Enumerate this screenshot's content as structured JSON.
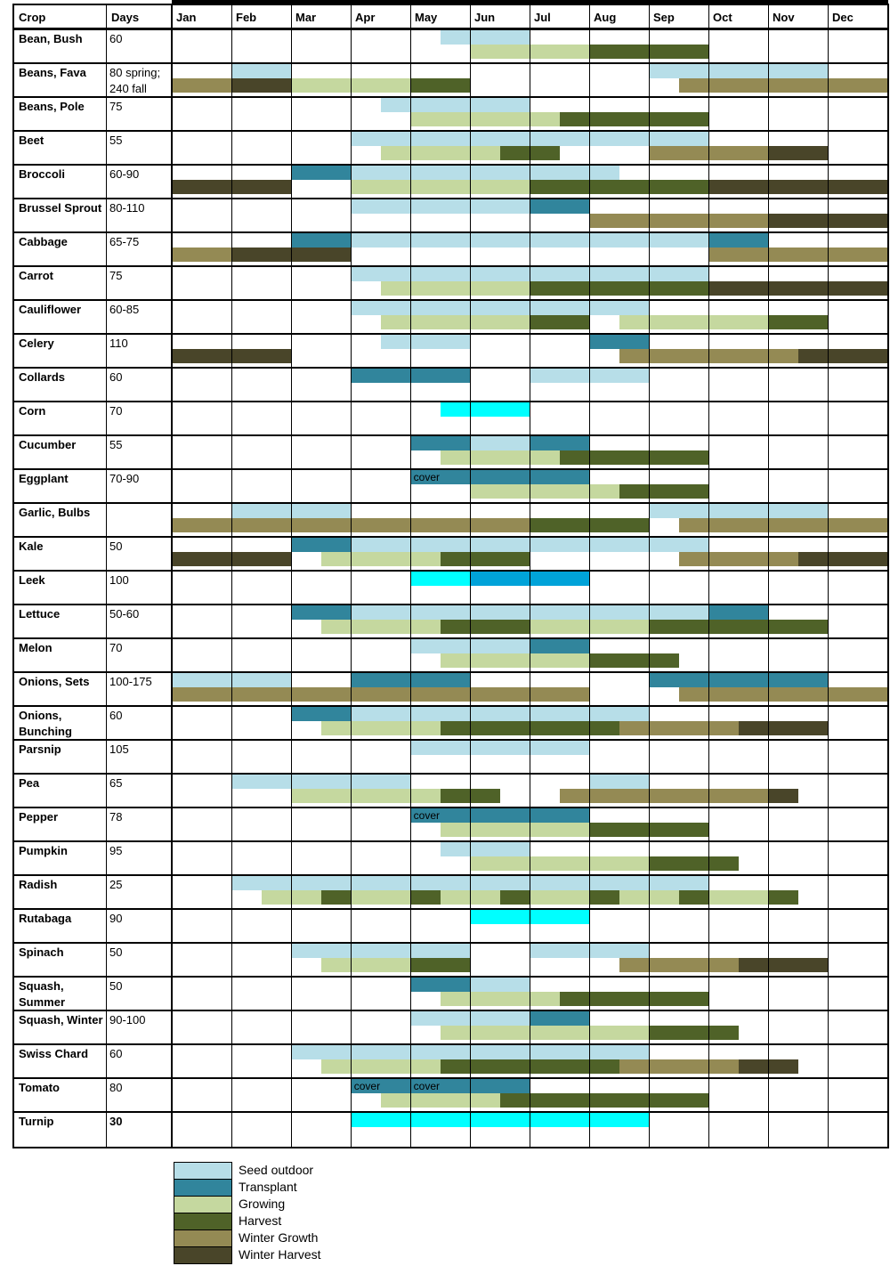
{
  "chart_data": {
    "type": "table",
    "title": "Vegetable planting calendar (gantt-style, months Jan-Dec)",
    "columns": {
      "crop": "Crop",
      "days": "Days"
    },
    "months": [
      "Jan",
      "Feb",
      "Mar",
      "Apr",
      "May",
      "Jun",
      "Jul",
      "Aug",
      "Sep",
      "Oct",
      "Nov",
      "Dec"
    ],
    "axis": {
      "months_per_row": 12,
      "bar_unit": "month index 0=Jan start, 12=Dec end"
    },
    "colors": {
      "seed": "#B7DEE8",
      "trans": "#31859C",
      "grow": "#C5D89F",
      "harv": "#4F6228",
      "wgrow": "#948A54",
      "wharv": "#494529",
      "cyan": "#00FFFF",
      "blue": "#00A3D9"
    },
    "legend": [
      {
        "key": "seed",
        "label": "Seed outdoor"
      },
      {
        "key": "trans",
        "label": "Transplant"
      },
      {
        "key": "grow",
        "label": "Growing"
      },
      {
        "key": "harv",
        "label": "Harvest"
      },
      {
        "key": "wgrow",
        "label": "Winter Growth"
      },
      {
        "key": "wharv",
        "label": "Winter Harvest"
      }
    ],
    "rows": [
      {
        "crop": "Bean, Bush",
        "days": "60",
        "top": [
          {
            "t": "seed",
            "s": 4.5,
            "e": 6
          }
        ],
        "bot": [
          {
            "t": "grow",
            "s": 5,
            "e": 7
          },
          {
            "t": "harv",
            "s": 7,
            "e": 9
          }
        ]
      },
      {
        "crop": "Beans, Fava",
        "days": "80 spring; 240 fall",
        "top": [
          {
            "t": "seed",
            "s": 1,
            "e": 2
          },
          {
            "t": "seed",
            "s": 8,
            "e": 11
          }
        ],
        "bot": [
          {
            "t": "wgrow",
            "s": 0,
            "e": 1
          },
          {
            "t": "wharv",
            "s": 1,
            "e": 2
          },
          {
            "t": "grow",
            "s": 2,
            "e": 4
          },
          {
            "t": "harv",
            "s": 4,
            "e": 5
          },
          {
            "t": "wgrow",
            "s": 8.5,
            "e": 12
          }
        ]
      },
      {
        "crop": "Beans, Pole",
        "days": "75",
        "top": [
          {
            "t": "seed",
            "s": 3.5,
            "e": 6
          }
        ],
        "bot": [
          {
            "t": "grow",
            "s": 4,
            "e": 6.5
          },
          {
            "t": "harv",
            "s": 6.5,
            "e": 9
          }
        ]
      },
      {
        "crop": "Beet",
        "days": "55",
        "top": [
          {
            "t": "seed",
            "s": 3,
            "e": 9
          }
        ],
        "bot": [
          {
            "t": "grow",
            "s": 3.5,
            "e": 5.5
          },
          {
            "t": "harv",
            "s": 5.5,
            "e": 6.5
          },
          {
            "t": "wgrow",
            "s": 8,
            "e": 10
          },
          {
            "t": "wharv",
            "s": 10,
            "e": 11
          }
        ]
      },
      {
        "crop": "Broccoli",
        "days": "60-90",
        "top": [
          {
            "t": "trans",
            "s": 2,
            "e": 3
          },
          {
            "t": "seed",
            "s": 3,
            "e": 7.5
          }
        ],
        "bot": [
          {
            "t": "wharv",
            "s": 0,
            "e": 2
          },
          {
            "t": "grow",
            "s": 3,
            "e": 6
          },
          {
            "t": "harv",
            "s": 6,
            "e": 9
          },
          {
            "t": "wharv",
            "s": 9,
            "e": 12
          }
        ]
      },
      {
        "crop": "Brussel Sprout",
        "days": "80-110",
        "top": [
          {
            "t": "seed",
            "s": 3,
            "e": 6
          },
          {
            "t": "trans",
            "s": 6,
            "e": 7
          }
        ],
        "bot": [
          {
            "t": "wgrow",
            "s": 7,
            "e": 10
          },
          {
            "t": "wharv",
            "s": 10,
            "e": 12
          }
        ]
      },
      {
        "crop": "Cabbage",
        "days": "65-75",
        "top": [
          {
            "t": "trans",
            "s": 2,
            "e": 3
          },
          {
            "t": "seed",
            "s": 3,
            "e": 9
          },
          {
            "t": "trans",
            "s": 9,
            "e": 10
          }
        ],
        "bot": [
          {
            "t": "wgrow",
            "s": 0,
            "e": 1
          },
          {
            "t": "wharv",
            "s": 1,
            "e": 3
          },
          {
            "t": "wgrow",
            "s": 9,
            "e": 12
          }
        ]
      },
      {
        "crop": "Carrot",
        "days": "75",
        "top": [
          {
            "t": "seed",
            "s": 3,
            "e": 9
          }
        ],
        "bot": [
          {
            "t": "grow",
            "s": 3.5,
            "e": 6
          },
          {
            "t": "harv",
            "s": 6,
            "e": 9
          },
          {
            "t": "wharv",
            "s": 9,
            "e": 12
          }
        ]
      },
      {
        "crop": "Cauliflower",
        "days": "60-85",
        "top": [
          {
            "t": "seed",
            "s": 3,
            "e": 8
          }
        ],
        "bot": [
          {
            "t": "grow",
            "s": 3.5,
            "e": 6
          },
          {
            "t": "harv",
            "s": 6,
            "e": 7
          },
          {
            "t": "grow",
            "s": 7.5,
            "e": 10
          },
          {
            "t": "harv",
            "s": 10,
            "e": 11
          }
        ]
      },
      {
        "crop": "Celery",
        "days": "110",
        "top": [
          {
            "t": "seed",
            "s": 3.5,
            "e": 5
          },
          {
            "t": "trans",
            "s": 7,
            "e": 8
          }
        ],
        "bot": [
          {
            "t": "wharv",
            "s": 0,
            "e": 2
          },
          {
            "t": "wgrow",
            "s": 7.5,
            "e": 10.5
          },
          {
            "t": "wharv",
            "s": 10.5,
            "e": 12
          }
        ]
      },
      {
        "crop": "Collards",
        "days": "60",
        "top": [
          {
            "t": "trans",
            "s": 3,
            "e": 5
          },
          {
            "t": "seed",
            "s": 6,
            "e": 8
          }
        ],
        "bot": []
      },
      {
        "crop": "Corn",
        "days": "70",
        "top": [
          {
            "t": "cyan",
            "s": 4.5,
            "e": 6
          }
        ],
        "bot": []
      },
      {
        "crop": "Cucumber",
        "days": "55",
        "top": [
          {
            "t": "trans",
            "s": 4,
            "e": 5
          },
          {
            "t": "seed",
            "s": 5,
            "e": 6
          },
          {
            "t": "trans",
            "s": 6,
            "e": 7
          }
        ],
        "bot": [
          {
            "t": "grow",
            "s": 4.5,
            "e": 6.5
          },
          {
            "t": "harv",
            "s": 6.5,
            "e": 9
          }
        ]
      },
      {
        "crop": "Eggplant",
        "days": "70-90",
        "top": [
          {
            "t": "trans",
            "s": 4,
            "e": 7,
            "label": "cover"
          }
        ],
        "bot": [
          {
            "t": "grow",
            "s": 5,
            "e": 7.5
          },
          {
            "t": "harv",
            "s": 7.5,
            "e": 9
          }
        ]
      },
      {
        "crop": "Garlic, Bulbs",
        "days": "",
        "top": [
          {
            "t": "seed",
            "s": 1,
            "e": 3
          },
          {
            "t": "seed",
            "s": 8,
            "e": 11
          }
        ],
        "bot": [
          {
            "t": "wgrow",
            "s": 0,
            "e": 6
          },
          {
            "t": "harv",
            "s": 6,
            "e": 8
          },
          {
            "t": "wgrow",
            "s": 8.5,
            "e": 12
          }
        ]
      },
      {
        "crop": "Kale",
        "days": "50",
        "top": [
          {
            "t": "trans",
            "s": 2,
            "e": 3
          },
          {
            "t": "seed",
            "s": 3,
            "e": 9
          }
        ],
        "bot": [
          {
            "t": "wharv",
            "s": 0,
            "e": 2
          },
          {
            "t": "grow",
            "s": 2.5,
            "e": 4.5
          },
          {
            "t": "harv",
            "s": 4.5,
            "e": 6
          },
          {
            "t": "wgrow",
            "s": 8.5,
            "e": 10.5
          },
          {
            "t": "wharv",
            "s": 10.5,
            "e": 12
          }
        ]
      },
      {
        "crop": "Leek",
        "days": "100",
        "top": [
          {
            "t": "cyan",
            "s": 4,
            "e": 5
          },
          {
            "t": "blue",
            "s": 5,
            "e": 7
          }
        ],
        "bot": []
      },
      {
        "crop": "Lettuce",
        "days": "50-60",
        "top": [
          {
            "t": "trans",
            "s": 2,
            "e": 3
          },
          {
            "t": "seed",
            "s": 3,
            "e": 9
          },
          {
            "t": "trans",
            "s": 9,
            "e": 10
          }
        ],
        "bot": [
          {
            "t": "grow",
            "s": 2.5,
            "e": 4.5
          },
          {
            "t": "harv",
            "s": 4.5,
            "e": 6
          },
          {
            "t": "grow",
            "s": 6,
            "e": 8
          },
          {
            "t": "harv",
            "s": 8,
            "e": 11
          }
        ]
      },
      {
        "crop": "Melon",
        "days": "70",
        "top": [
          {
            "t": "seed",
            "s": 4,
            "e": 6
          },
          {
            "t": "trans",
            "s": 6,
            "e": 7
          }
        ],
        "bot": [
          {
            "t": "grow",
            "s": 4.5,
            "e": 7
          },
          {
            "t": "harv",
            "s": 7,
            "e": 8.5
          }
        ]
      },
      {
        "crop": "Onions, Sets",
        "days": "100-175",
        "top": [
          {
            "t": "seed",
            "s": 0,
            "e": 2
          },
          {
            "t": "trans",
            "s": 3,
            "e": 5
          },
          {
            "t": "trans",
            "s": 8,
            "e": 11
          }
        ],
        "bot": [
          {
            "t": "wgrow",
            "s": 0,
            "e": 7
          },
          {
            "t": "wgrow",
            "s": 8.5,
            "e": 12
          }
        ]
      },
      {
        "crop": "Onions, Bunching",
        "days": "60",
        "top": [
          {
            "t": "trans",
            "s": 2,
            "e": 3
          },
          {
            "t": "seed",
            "s": 3,
            "e": 8
          }
        ],
        "bot": [
          {
            "t": "grow",
            "s": 2.5,
            "e": 4.5
          },
          {
            "t": "harv",
            "s": 4.5,
            "e": 7.5
          },
          {
            "t": "wgrow",
            "s": 7.5,
            "e": 9.5
          },
          {
            "t": "wharv",
            "s": 9.5,
            "e": 11
          }
        ]
      },
      {
        "crop": "Parsnip",
        "days": "105",
        "top": [
          {
            "t": "seed",
            "s": 4,
            "e": 7
          }
        ],
        "bot": []
      },
      {
        "crop": "Pea",
        "days": "65",
        "top": [
          {
            "t": "seed",
            "s": 1,
            "e": 4
          },
          {
            "t": "seed",
            "s": 7,
            "e": 8
          }
        ],
        "bot": [
          {
            "t": "grow",
            "s": 2,
            "e": 4.5
          },
          {
            "t": "harv",
            "s": 4.5,
            "e": 5.5
          },
          {
            "t": "wgrow",
            "s": 6.5,
            "e": 10
          },
          {
            "t": "wharv",
            "s": 10,
            "e": 10.5
          }
        ]
      },
      {
        "crop": "Pepper",
        "days": "78",
        "top": [
          {
            "t": "trans",
            "s": 4,
            "e": 7,
            "label": "cover"
          }
        ],
        "bot": [
          {
            "t": "grow",
            "s": 4.5,
            "e": 7
          },
          {
            "t": "harv",
            "s": 7,
            "e": 9
          }
        ]
      },
      {
        "crop": "Pumpkin",
        "days": "95",
        "top": [
          {
            "t": "seed",
            "s": 4.5,
            "e": 6
          }
        ],
        "bot": [
          {
            "t": "grow",
            "s": 5,
            "e": 8
          },
          {
            "t": "harv",
            "s": 8,
            "e": 9.5
          }
        ]
      },
      {
        "crop": "Radish",
        "days": "25",
        "top": [
          {
            "t": "seed",
            "s": 1,
            "e": 9
          }
        ],
        "bot": [
          {
            "t": "grow",
            "s": 1.5,
            "e": 2.5
          },
          {
            "t": "harv",
            "s": 2.5,
            "e": 3
          },
          {
            "t": "grow",
            "s": 3,
            "e": 4
          },
          {
            "t": "harv",
            "s": 4,
            "e": 4.5
          },
          {
            "t": "grow",
            "s": 4.5,
            "e": 5.5
          },
          {
            "t": "harv",
            "s": 5.5,
            "e": 6
          },
          {
            "t": "grow",
            "s": 6,
            "e": 7
          },
          {
            "t": "harv",
            "s": 7,
            "e": 7.5
          },
          {
            "t": "grow",
            "s": 7.5,
            "e": 8.5
          },
          {
            "t": "harv",
            "s": 8.5,
            "e": 9
          },
          {
            "t": "grow",
            "s": 9,
            "e": 10
          },
          {
            "t": "harv",
            "s": 10,
            "e": 10.5
          }
        ]
      },
      {
        "crop": "Rutabaga",
        "days": "90",
        "top": [
          {
            "t": "cyan",
            "s": 5,
            "e": 7
          }
        ],
        "bot": []
      },
      {
        "crop": "Spinach",
        "days": "50",
        "top": [
          {
            "t": "seed",
            "s": 2,
            "e": 5
          },
          {
            "t": "seed",
            "s": 6,
            "e": 8
          }
        ],
        "bot": [
          {
            "t": "grow",
            "s": 2.5,
            "e": 4
          },
          {
            "t": "harv",
            "s": 4,
            "e": 5
          },
          {
            "t": "wgrow",
            "s": 7.5,
            "e": 9.5
          },
          {
            "t": "wharv",
            "s": 9.5,
            "e": 11
          }
        ]
      },
      {
        "crop": "Squash, Summer",
        "days": "50",
        "top": [
          {
            "t": "trans",
            "s": 4,
            "e": 5
          },
          {
            "t": "seed",
            "s": 5,
            "e": 6
          }
        ],
        "bot": [
          {
            "t": "grow",
            "s": 4.5,
            "e": 6.5
          },
          {
            "t": "harv",
            "s": 6.5,
            "e": 9
          }
        ]
      },
      {
        "crop": "Squash, Winter",
        "days": "90-100",
        "top": [
          {
            "t": "seed",
            "s": 4,
            "e": 6
          },
          {
            "t": "trans",
            "s": 6,
            "e": 7
          }
        ],
        "bot": [
          {
            "t": "grow",
            "s": 4.5,
            "e": 8
          },
          {
            "t": "harv",
            "s": 8,
            "e": 9.5
          }
        ]
      },
      {
        "crop": "Swiss Chard",
        "days": "60",
        "top": [
          {
            "t": "seed",
            "s": 2,
            "e": 8
          }
        ],
        "bot": [
          {
            "t": "grow",
            "s": 2.5,
            "e": 4.5
          },
          {
            "t": "harv",
            "s": 4.5,
            "e": 7.5
          },
          {
            "t": "wgrow",
            "s": 7.5,
            "e": 9.5
          },
          {
            "t": "wharv",
            "s": 9.5,
            "e": 10.5
          }
        ]
      },
      {
        "crop": "Tomato",
        "days": "80",
        "top": [
          {
            "t": "trans",
            "s": 3,
            "e": 4,
            "label": "cover"
          },
          {
            "t": "trans",
            "s": 4,
            "e": 6,
            "label": "cover"
          }
        ],
        "bot": [
          {
            "t": "grow",
            "s": 3.5,
            "e": 5.5
          },
          {
            "t": "harv",
            "s": 5.5,
            "e": 9
          }
        ]
      },
      {
        "crop": "Turnip",
        "days": "30",
        "daysBold": true,
        "top": [
          {
            "t": "cyan",
            "s": 3,
            "e": 8
          }
        ],
        "bot": []
      }
    ]
  }
}
